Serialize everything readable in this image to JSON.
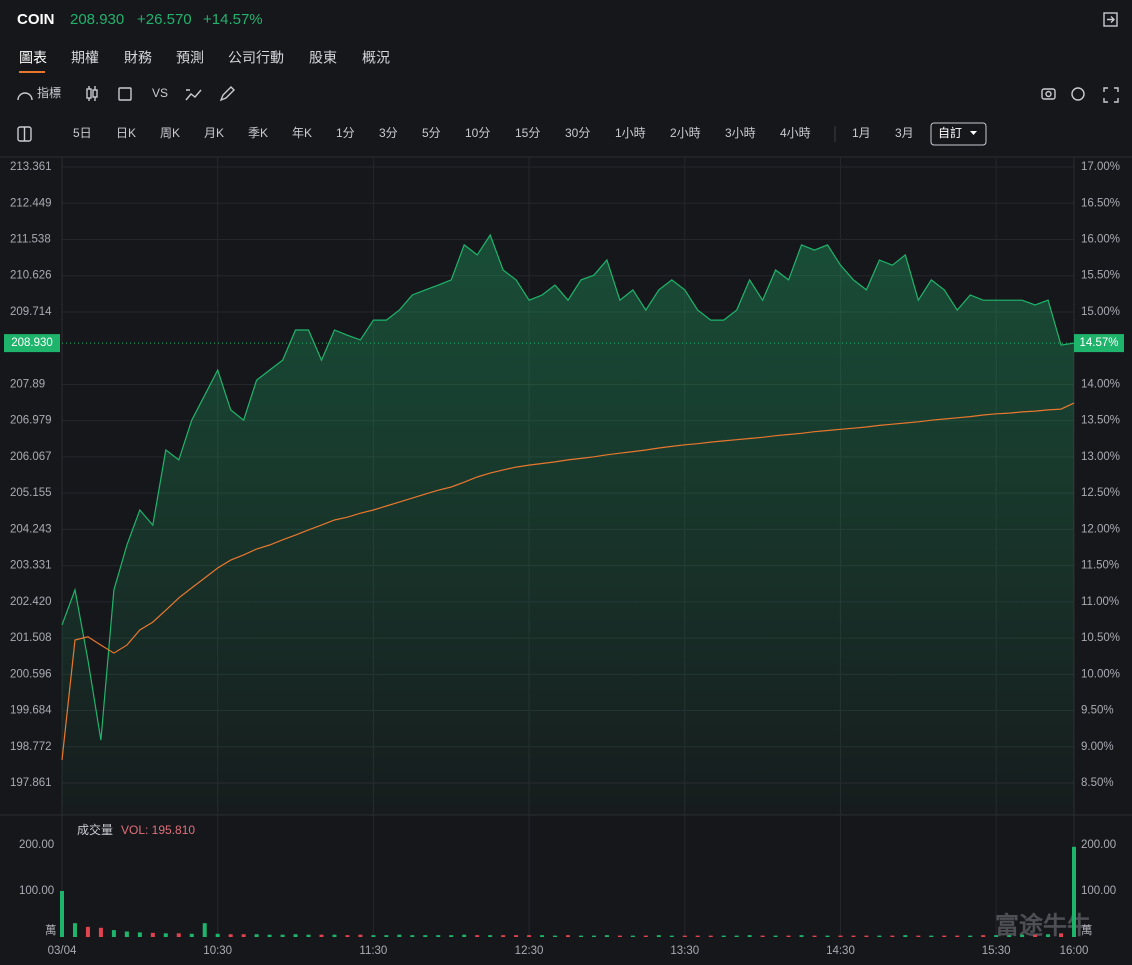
{
  "header": {
    "symbol": "COIN",
    "price": "208.930",
    "change": "+26.570",
    "change_pct": "+14.57%"
  },
  "tabs": [
    "圖表",
    "期權",
    "財務",
    "預測",
    "公司行動",
    "股東",
    "概況"
  ],
  "toolbar": {
    "indicators": "指標",
    "compare": "VS"
  },
  "periods": [
    "5日",
    "日K",
    "周K",
    "月K",
    "季K",
    "年K",
    "1分",
    "3分",
    "5分",
    "10分",
    "15分",
    "30分",
    "1小時",
    "2小時",
    "3小時",
    "4小時",
    "1月",
    "3月"
  ],
  "custom_period": "自訂",
  "watermark": "富途牛牛",
  "chart_data": {
    "type": "line",
    "x": [
      "09:30",
      "09:35",
      "09:40",
      "09:45",
      "09:50",
      "09:55",
      "10:00",
      "10:05",
      "10:10",
      "10:15",
      "10:20",
      "10:25",
      "10:30",
      "10:35",
      "10:40",
      "10:45",
      "10:50",
      "10:55",
      "11:00",
      "11:05",
      "11:10",
      "11:15",
      "11:20",
      "11:25",
      "11:30",
      "11:35",
      "11:40",
      "11:45",
      "11:50",
      "11:55",
      "12:00",
      "12:05",
      "12:10",
      "12:15",
      "12:20",
      "12:25",
      "12:30",
      "12:35",
      "12:40",
      "12:45",
      "12:50",
      "12:55",
      "13:00",
      "13:05",
      "13:10",
      "13:15",
      "13:20",
      "13:25",
      "13:30",
      "13:35",
      "13:40",
      "13:45",
      "13:50",
      "13:55",
      "14:00",
      "14:05",
      "14:10",
      "14:15",
      "14:20",
      "14:25",
      "14:30",
      "14:35",
      "14:40",
      "14:45",
      "14:50",
      "14:55",
      "15:00",
      "15:05",
      "15:10",
      "15:15",
      "15:20",
      "15:25",
      "15:30",
      "15:35",
      "15:40",
      "15:45",
      "15:50",
      "15:55",
      "16:00"
    ],
    "series": [
      {
        "color": "#1fb46b",
        "values": [
          201.84,
          202.72,
          200.96,
          198.94,
          202.72,
          203.85,
          204.73,
          204.35,
          206.24,
          205.99,
          206.99,
          207.62,
          208.25,
          207.25,
          206.99,
          208.0,
          208.25,
          208.5,
          209.26,
          209.26,
          208.5,
          209.26,
          209.13,
          209.01,
          209.51,
          209.51,
          209.76,
          210.14,
          210.27,
          210.39,
          210.52,
          211.4,
          211.15,
          211.65,
          210.77,
          210.52,
          210.01,
          210.14,
          210.39,
          210.01,
          210.52,
          210.64,
          211.02,
          210.01,
          210.27,
          209.76,
          210.27,
          210.52,
          210.27,
          209.76,
          209.51,
          209.51,
          209.76,
          210.52,
          210.01,
          210.77,
          210.52,
          211.4,
          211.27,
          211.4,
          210.89,
          210.52,
          210.27,
          211.02,
          210.89,
          211.15,
          210.01,
          210.52,
          210.27,
          209.76,
          210.14,
          210.01,
          210.01,
          210.01,
          210.01,
          209.89,
          210.01,
          208.88,
          208.93
        ]
      },
      {
        "color": "#e8772e",
        "values": [
          198.44,
          201.46,
          201.54,
          201.33,
          201.13,
          201.33,
          201.71,
          201.91,
          202.21,
          202.52,
          202.77,
          203.02,
          203.27,
          203.47,
          203.6,
          203.75,
          203.85,
          203.98,
          204.1,
          204.23,
          204.35,
          204.48,
          204.55,
          204.65,
          204.73,
          204.83,
          204.93,
          205.03,
          205.13,
          205.23,
          205.31,
          205.43,
          205.56,
          205.66,
          205.74,
          205.81,
          205.86,
          205.9,
          205.94,
          205.99,
          206.03,
          206.07,
          206.12,
          206.16,
          206.2,
          206.24,
          206.29,
          206.33,
          206.37,
          206.4,
          206.44,
          206.47,
          206.5,
          206.53,
          206.56,
          206.6,
          206.63,
          206.66,
          206.7,
          206.73,
          206.76,
          206.79,
          206.82,
          206.86,
          206.89,
          206.92,
          206.95,
          206.99,
          207.02,
          207.05,
          207.08,
          207.12,
          207.15,
          207.17,
          207.2,
          207.22,
          207.25,
          207.27,
          207.42
        ]
      }
    ],
    "ylim": [
      197.056,
      213.613
    ],
    "yticks": [
      213.361,
      212.449,
      211.538,
      210.626,
      209.714,
      207.89,
      206.979,
      206.067,
      205.155,
      204.243,
      203.331,
      {
        "value": 202.42,
        "label": "202.420"
      },
      201.508,
      200.596,
      199.684,
      198.772,
      197.861
    ],
    "y2lim": [
      8.058,
      17.138
    ],
    "y2ticks": [
      {
        "value": 17,
        "label": "17.00%"
      },
      {
        "value": 16.5,
        "label": "16.50%"
      },
      {
        "value": 16,
        "label": "16.00%"
      },
      {
        "value": 15.5,
        "label": "15.50%"
      },
      {
        "value": 15,
        "label": "15.00%"
      },
      {
        "value": 14,
        "label": "14.00%"
      },
      {
        "value": 13.5,
        "label": "13.50%"
      },
      {
        "value": 13,
        "label": "13.00%"
      },
      {
        "value": 12.5,
        "label": "12.50%"
      },
      {
        "value": 12,
        "label": "12.00%"
      },
      {
        "value": 11.5,
        "label": "11.50%"
      },
      {
        "value": 11,
        "label": "11.00%"
      },
      {
        "value": 10.5,
        "label": "10.50%"
      },
      {
        "value": 10,
        "label": "10.00%"
      },
      {
        "value": 9.5,
        "label": "9.50%"
      },
      {
        "value": 9,
        "label": "9.00%"
      },
      {
        "value": 8.5,
        "label": "8.50%"
      }
    ],
    "last_price": {
      "value": 208.93,
      "label": "208.930"
    },
    "last_pct": {
      "value": 14.57,
      "label": "14.57%"
    },
    "xticks": [
      {
        "value": "09:30",
        "label": "03/04"
      },
      "10:30",
      "11:30",
      "12:30",
      "13:30",
      "14:30",
      "15:30",
      "16:00"
    ],
    "grid": true,
    "volume": {
      "title": "成交量",
      "label": "VOL: 195.810",
      "unit": "萬",
      "up_color": "#1fb46b",
      "down_color": "#e0424f",
      "values": [
        100,
        30,
        22,
        20,
        15,
        12,
        10,
        9,
        8,
        8,
        7,
        30,
        7,
        6,
        6,
        6,
        5,
        5,
        6,
        5,
        5,
        5,
        4,
        5,
        4,
        4,
        5,
        4,
        4,
        4,
        4,
        5,
        4,
        4,
        4,
        4,
        4,
        4,
        3,
        4,
        3,
        3,
        4,
        3,
        3,
        3,
        4,
        3,
        3,
        3,
        3,
        3,
        3,
        4,
        3,
        3,
        3,
        4,
        3,
        3,
        3,
        3,
        3,
        3,
        3,
        4,
        3,
        3,
        3,
        3,
        3,
        4,
        4,
        4,
        5,
        5,
        6,
        8,
        195.81
      ],
      "ylim": [
        0,
        254
      ],
      "yticks": [
        {
          "value": 200,
          "label": "200.00"
        },
        {
          "value": 100,
          "label": "100.00"
        }
      ]
    }
  }
}
